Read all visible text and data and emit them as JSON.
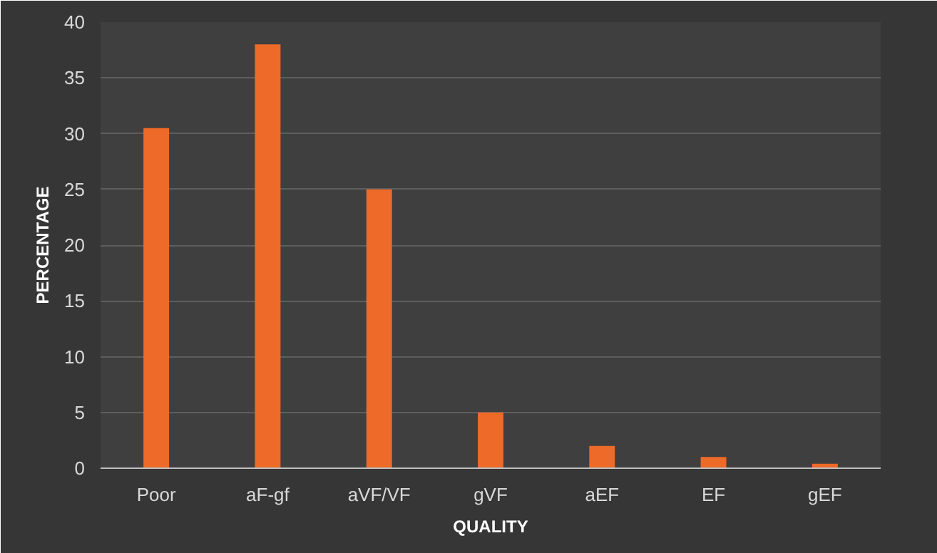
{
  "chart_data": {
    "type": "bar",
    "xlabel": "QUALITY",
    "ylabel": "PERCENTAGE",
    "categories": [
      "Poor",
      "aF-gf",
      "aVF/VF",
      "gVF",
      "aEF",
      "EF",
      "gEF"
    ],
    "values": [
      30.5,
      38,
      25,
      5,
      2,
      1,
      0.4
    ],
    "color": "#ed6a28",
    "ylim": [
      0,
      40
    ],
    "yticks": [
      0,
      5,
      10,
      15,
      20,
      25,
      30,
      35,
      40
    ],
    "grid": "y"
  }
}
